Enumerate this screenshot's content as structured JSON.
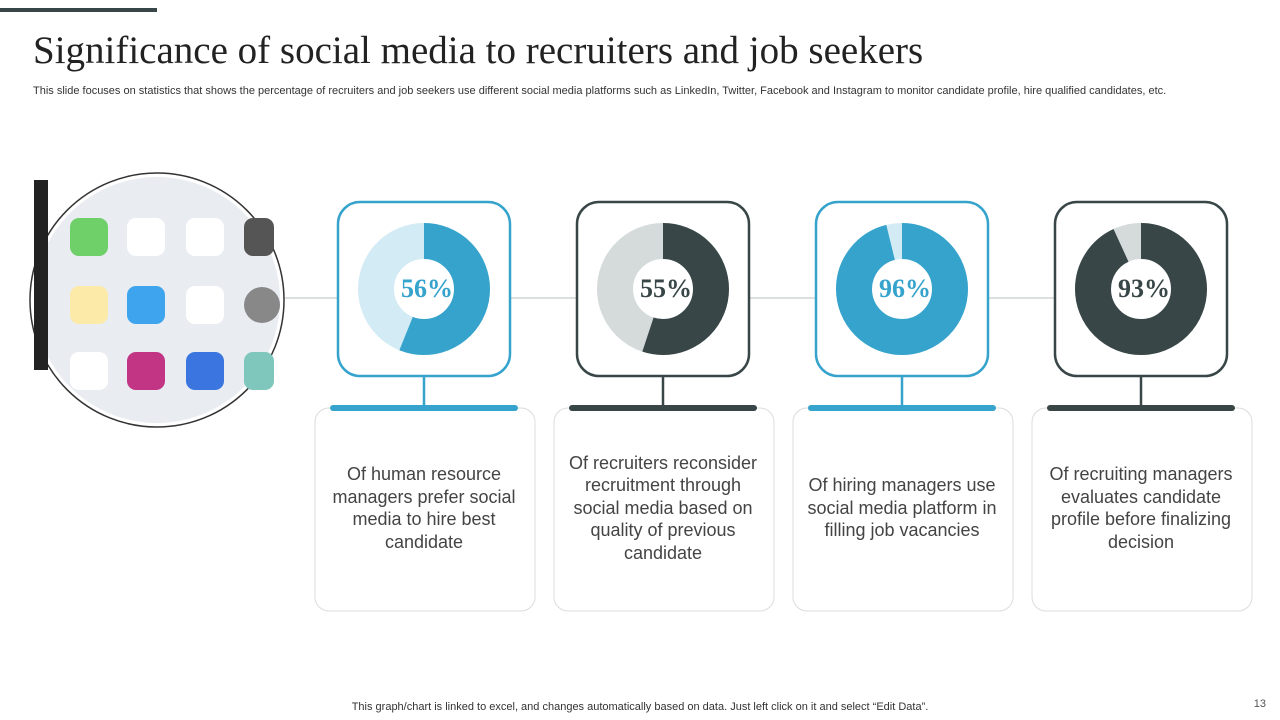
{
  "title": "Significance of social media to recruiters and job seekers",
  "subtitle": "This slide focuses on statistics that shows the percentage of recruiters and job seekers use different social media platforms such as LinkedIn, Twitter, Facebook and Instagram to monitor candidate profile, hire qualified candidates, etc.",
  "footer": "This graph/chart is linked to excel,  and changes automatically based on data. Just left click on it and select “Edit Data”.",
  "page_number": "13",
  "chart_data": [
    {
      "type": "donut",
      "values": [
        56
      ],
      "value_labels": [
        "56%"
      ],
      "color": "#36a3cc",
      "track_color": "#d3ebf5",
      "description": "Of human resource managers prefer social media to hire best candidate"
    },
    {
      "type": "donut",
      "values": [
        55
      ],
      "value_labels": [
        "55%"
      ],
      "color": "#384647",
      "track_color": "#d5dadb",
      "description": "Of recruiters reconsider recruitment through social media based on quality of previous candidate"
    },
    {
      "type": "donut",
      "values": [
        96
      ],
      "value_labels": [
        "96%"
      ],
      "color": "#36a3cc",
      "track_color": "#d3ebf5",
      "description": "Of hiring managers use social media platform in filling job vacancies"
    },
    {
      "type": "donut",
      "values": [
        93
      ],
      "value_labels": [
        "93%"
      ],
      "color": "#384647",
      "track_color": "#d5dadb",
      "description": "Of recruiting managers evaluates candidate profile before finalizing decision"
    }
  ]
}
